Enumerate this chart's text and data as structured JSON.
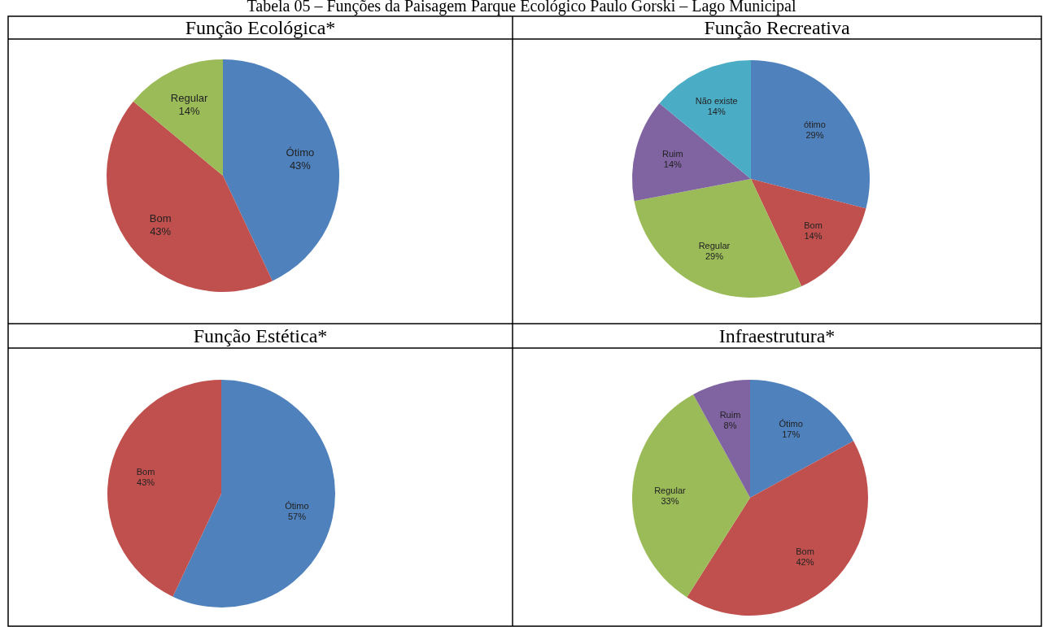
{
  "chart_data": [
    {
      "type": "pie",
      "title": "Função Ecológica*",
      "annotations": [
        "Tabela 05 – Funções da Paisagem Parque Ecológico Paulo Gorski – Lago Municipal"
      ],
      "categories": [
        "Ótimo",
        "Bom",
        "Regular"
      ],
      "values": [
        43,
        43,
        14
      ],
      "value_labels": [
        "43%",
        "43%",
        "14%"
      ],
      "colors": [
        "#4f81bd",
        "#c0504d",
        "#9bbb59"
      ]
    },
    {
      "type": "pie",
      "title": "Função Recreativa",
      "categories": [
        "ótimo",
        "Bom",
        "Regular",
        "Ruim",
        "Não existe"
      ],
      "values": [
        29,
        14,
        29,
        14,
        14
      ],
      "value_labels": [
        "29%",
        "14%",
        "29%",
        "14%",
        "14%"
      ],
      "colors": [
        "#4f81bd",
        "#c0504d",
        "#9bbb59",
        "#8064a2",
        "#4bacc6"
      ]
    },
    {
      "type": "pie",
      "title": "Função Estética*",
      "categories": [
        "Ótimo",
        "Bom"
      ],
      "values": [
        57,
        43
      ],
      "value_labels": [
        "57%",
        "43%"
      ],
      "colors": [
        "#4f81bd",
        "#c0504d"
      ]
    },
    {
      "type": "pie",
      "title": "Infraestrutura*",
      "categories": [
        "Ótimo",
        "Bom",
        "Regular",
        "Ruim"
      ],
      "values": [
        17,
        42,
        33,
        8
      ],
      "value_labels": [
        "17%",
        "42%",
        "33%",
        "8%"
      ],
      "colors": [
        "#4f81bd",
        "#c0504d",
        "#9bbb59",
        "#8064a2"
      ]
    }
  ]
}
